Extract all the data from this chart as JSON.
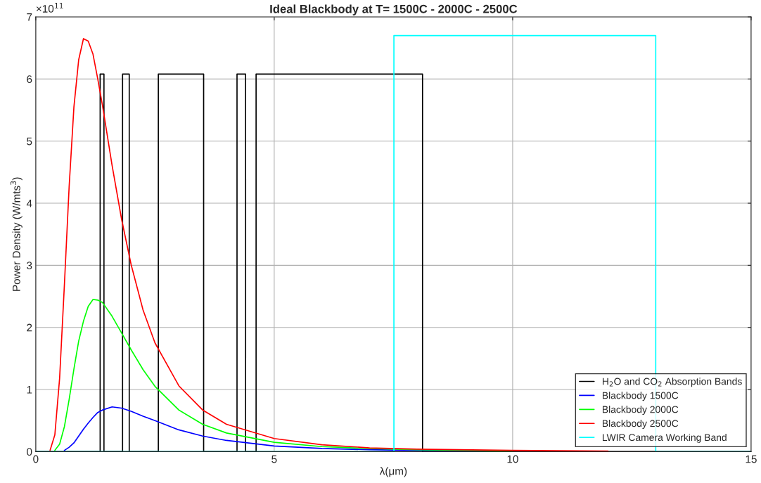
{
  "chart_data": {
    "type": "line",
    "title": "Ideal Blackbody at T= 1500C - 2000C - 2500C",
    "xlabel": "λ(μm)",
    "ylabel": "Power Density (W/mts$^{3}$)",
    "annotations": [
      "×10$^{11}$"
    ],
    "xlim": [
      0,
      15
    ],
    "ylim": [
      0,
      7
    ],
    "xticks": [
      0,
      5,
      10,
      15
    ],
    "yticks": [
      0,
      1,
      2,
      3,
      4,
      5,
      6,
      7
    ],
    "grid": true,
    "legend": "bottom right",
    "line_style": "solid",
    "marker": "none",
    "series": [
      {
        "name": "H$_{2}$O and CO$_{2}$ Absorption Bands",
        "color": "#000000",
        "x": [
          0,
          1.35,
          1.35,
          1.43,
          1.43,
          1.82,
          1.82,
          1.96,
          1.96,
          2.57,
          2.57,
          3.52,
          3.52,
          4.22,
          4.22,
          4.4,
          4.4,
          4.62,
          4.62,
          8.11,
          8.11,
          15
        ],
        "values": [
          0,
          0,
          6.08,
          6.08,
          0,
          0,
          6.08,
          6.08,
          0,
          0,
          6.08,
          6.08,
          0,
          0,
          6.08,
          6.08,
          0,
          0,
          6.08,
          6.08,
          0,
          0
        ]
      },
      {
        "name": "Blackbody 1500C",
        "color": "#0000ff",
        "x": [
          0.6,
          0.7,
          0.8,
          0.9,
          1.0,
          1.1,
          1.2,
          1.3,
          1.4,
          1.6,
          1.8,
          2.0,
          2.25,
          2.5,
          3,
          3.5,
          4,
          5,
          6,
          7,
          8,
          10
        ],
        "values": [
          0.02,
          0.07,
          0.14,
          0.25,
          0.36,
          0.46,
          0.55,
          0.63,
          0.67,
          0.72,
          0.7,
          0.65,
          0.57,
          0.5,
          0.35,
          0.25,
          0.18,
          0.09,
          0.05,
          0.03,
          0.02,
          0.01
        ]
      },
      {
        "name": "Blackbody 2000C",
        "color": "#00ff00",
        "x": [
          0.4,
          0.5,
          0.6,
          0.7,
          0.8,
          0.9,
          1.0,
          1.1,
          1.2,
          1.3,
          1.4,
          1.6,
          1.8,
          2.0,
          2.25,
          2.5,
          3,
          3.5,
          4,
          5,
          6,
          7,
          8,
          10
        ],
        "values": [
          0.02,
          0.12,
          0.4,
          0.84,
          1.33,
          1.78,
          2.1,
          2.34,
          2.45,
          2.44,
          2.4,
          2.18,
          1.91,
          1.64,
          1.32,
          1.05,
          0.67,
          0.44,
          0.3,
          0.15,
          0.08,
          0.05,
          0.03,
          0.01
        ]
      },
      {
        "name": "Blackbody 2500C",
        "color": "#ff0000",
        "x": [
          0.3,
          0.4,
          0.5,
          0.6,
          0.7,
          0.8,
          0.9,
          1.0,
          1.1,
          1.2,
          1.3,
          1.4,
          1.6,
          1.8,
          2.0,
          2.25,
          2.5,
          3,
          3.5,
          4,
          5,
          6,
          7,
          8,
          10,
          12
        ],
        "values": [
          0.02,
          0.27,
          1.18,
          2.68,
          4.27,
          5.55,
          6.31,
          6.65,
          6.61,
          6.4,
          6.0,
          5.57,
          4.61,
          3.74,
          3.01,
          2.28,
          1.75,
          1.06,
          0.67,
          0.44,
          0.21,
          0.11,
          0.06,
          0.04,
          0.02,
          0.01
        ]
      },
      {
        "name": "LWIR Camera Working Band",
        "color": "#00ffff",
        "x": [
          0,
          7.51,
          7.51,
          13.0,
          13.0,
          15
        ],
        "values": [
          0,
          0,
          6.7,
          6.7,
          0,
          0
        ]
      }
    ]
  }
}
